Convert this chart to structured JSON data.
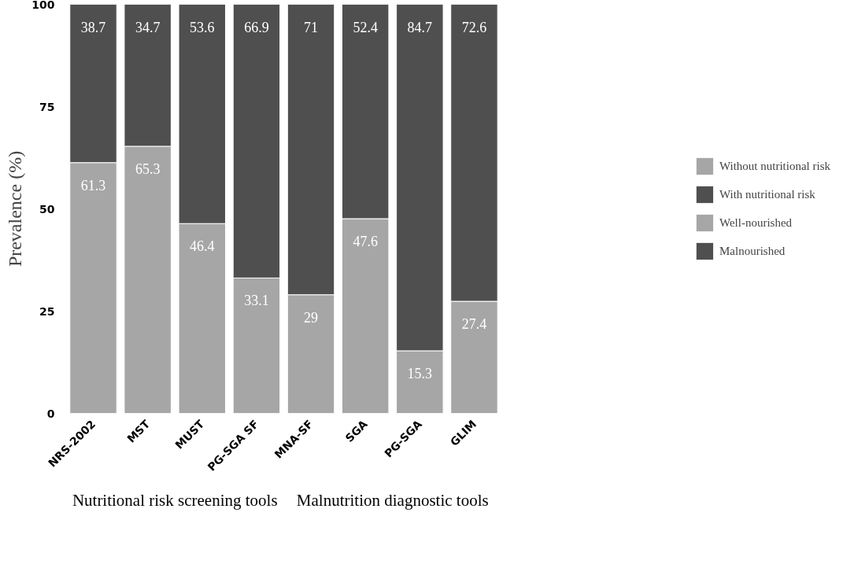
{
  "chart_data": {
    "type": "bar",
    "stacked": true,
    "ylabel": "Prevalence (%)",
    "categories": [
      "NRS-2002",
      "MST",
      "MUST",
      "PG-SGA SF",
      "MNA-SF",
      "SGA",
      "PG-SGA",
      "GLIM"
    ],
    "series": [
      {
        "name": "Without nutritional risk",
        "color": "#a6a6a6",
        "values": [
          61.3,
          65.3,
          46.4,
          33.1,
          null,
          null,
          null,
          null
        ]
      },
      {
        "name": "With nutritional risk",
        "color": "#4f4f4f",
        "values": [
          38.7,
          34.7,
          53.6,
          66.9,
          null,
          null,
          null,
          null
        ]
      },
      {
        "name": "Well-nourished",
        "color": "#a6a6a6",
        "values": [
          null,
          null,
          null,
          null,
          29,
          47.6,
          15.3,
          27.4
        ]
      },
      {
        "name": "Malnourished",
        "color": "#4f4f4f",
        "values": [
          null,
          null,
          null,
          null,
          71,
          52.4,
          84.7,
          72.6
        ]
      }
    ],
    "ylim": [
      0,
      100
    ],
    "yticks": [
      0,
      25,
      50,
      75,
      100
    ],
    "grid": false,
    "legend": "right",
    "data_labels": true,
    "annotations": [
      {
        "text": "Nutritional risk screening tools"
      },
      {
        "text": "Malnutrition diagnostic tools"
      }
    ]
  }
}
